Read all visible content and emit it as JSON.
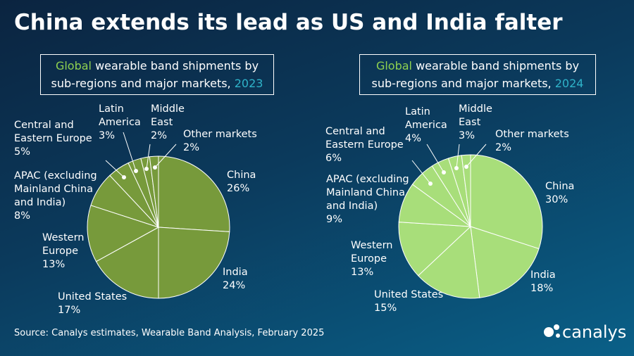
{
  "title": "China extends its lead as US and India falter",
  "source": "Source: Canalys estimates, Wearable Band Analysis, February 2025",
  "logo": "canalys",
  "chart_data": [
    {
      "type": "pie",
      "title": [
        "Global",
        "wearable band shipments by sub-regions and major markets,",
        "2023"
      ],
      "color": "#779a3b",
      "categories": [
        "China",
        "India",
        "United States",
        "Western Europe",
        "APAC (excluding Mainland China and India)",
        "Central and Eastern Europe",
        "Latin America",
        "Middle East",
        "Other markets"
      ],
      "values": [
        26,
        24,
        17,
        13,
        8,
        5,
        3,
        2,
        2
      ],
      "value_labels": [
        "26%",
        "24%",
        "17%",
        "13%",
        "8%",
        "5%",
        "3%",
        "2%",
        "2%"
      ]
    },
    {
      "type": "pie",
      "title": [
        "Global",
        "wearable band shipments by sub-regions and major markets,",
        "2024"
      ],
      "color": "#a8de7a",
      "categories": [
        "China",
        "India",
        "United States",
        "Western Europe",
        "APAC (excluding Mainland China and India)",
        "Central and Eastern Europe",
        "Latin America",
        "Middle East",
        "Other markets"
      ],
      "values": [
        30,
        18,
        15,
        13,
        9,
        6,
        4,
        3,
        2
      ],
      "value_labels": [
        "30%",
        "18%",
        "15%",
        "13%",
        "9%",
        "6%",
        "4%",
        "3%",
        "2%"
      ]
    }
  ]
}
